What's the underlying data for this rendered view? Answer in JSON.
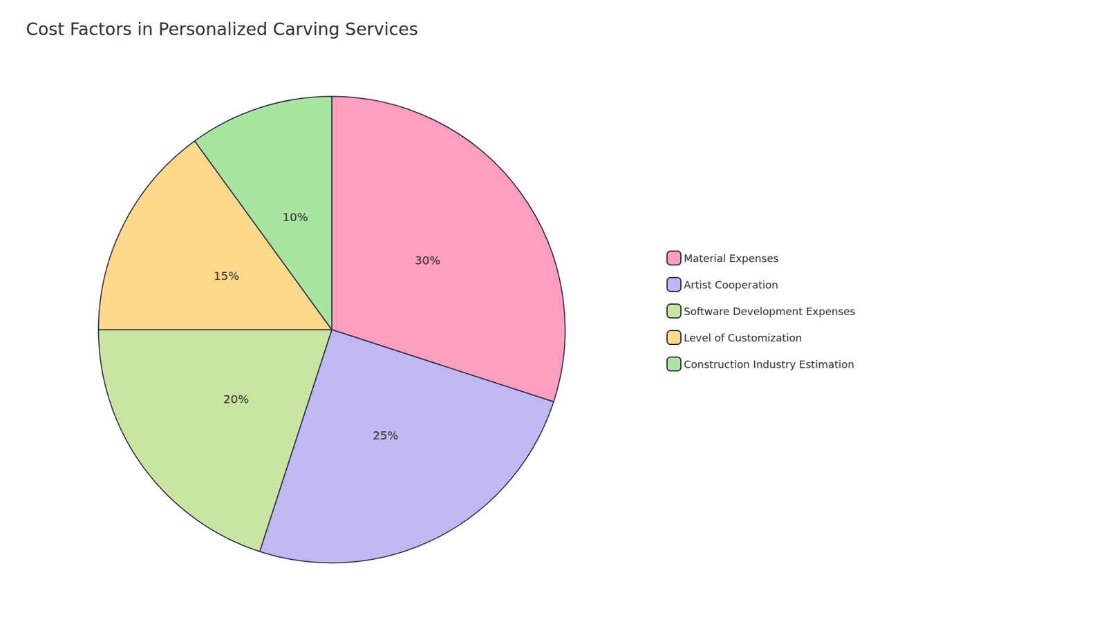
{
  "chart_data": {
    "type": "pie",
    "title": "Cost Factors in Personalized Carving Services",
    "categories": [
      "Material Expenses",
      "Artist Cooperation",
      "Software Development Expenses",
      "Level of Customization",
      "Construction Industry Estimation"
    ],
    "values": [
      30,
      25,
      20,
      15,
      10
    ],
    "value_labels": [
      "30%",
      "25%",
      "20%",
      "15%",
      "10%"
    ],
    "colors": [
      "#FF9EBE",
      "#C0B8F0",
      "#C8E6A0",
      "#FFD98A",
      "#A8E6A0"
    ],
    "data_labels": true,
    "legend": "right"
  }
}
